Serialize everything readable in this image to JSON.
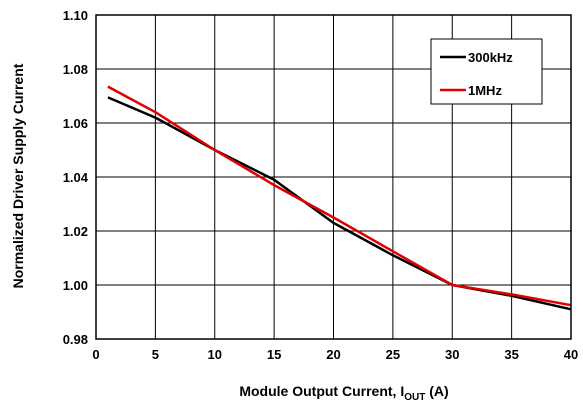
{
  "chart_data": {
    "type": "line",
    "xlabel": "Module Output Current, I",
    "xlabel_sub": "OUT",
    "xlabel_unit": " (A)",
    "ylabel": "Normalized Driver Supply Current",
    "xlim": [
      0,
      40
    ],
    "ylim": [
      0.98,
      1.1
    ],
    "x_ticks": [
      "0",
      "5",
      "10",
      "15",
      "20",
      "25",
      "30",
      "35",
      "40"
    ],
    "y_ticks": [
      "0.98",
      "1.00",
      "1.02",
      "1.04",
      "1.06",
      "1.08",
      "1.10"
    ],
    "grid": true,
    "legend_position": "top-right",
    "series": [
      {
        "name": "300kHz",
        "color": "#000000",
        "x": [
          1,
          5,
          10,
          15,
          20,
          25,
          30,
          35,
          40
        ],
        "y": [
          1.0695,
          1.062,
          1.05,
          1.039,
          1.023,
          1.011,
          1.0,
          0.996,
          0.991
        ]
      },
      {
        "name": "1MHz",
        "color": "#e00000",
        "x": [
          1,
          5,
          10,
          15,
          20,
          25,
          30,
          35,
          40
        ],
        "y": [
          1.0735,
          1.064,
          1.05,
          1.037,
          1.025,
          1.0125,
          1.0,
          0.9965,
          0.9925
        ]
      }
    ]
  }
}
